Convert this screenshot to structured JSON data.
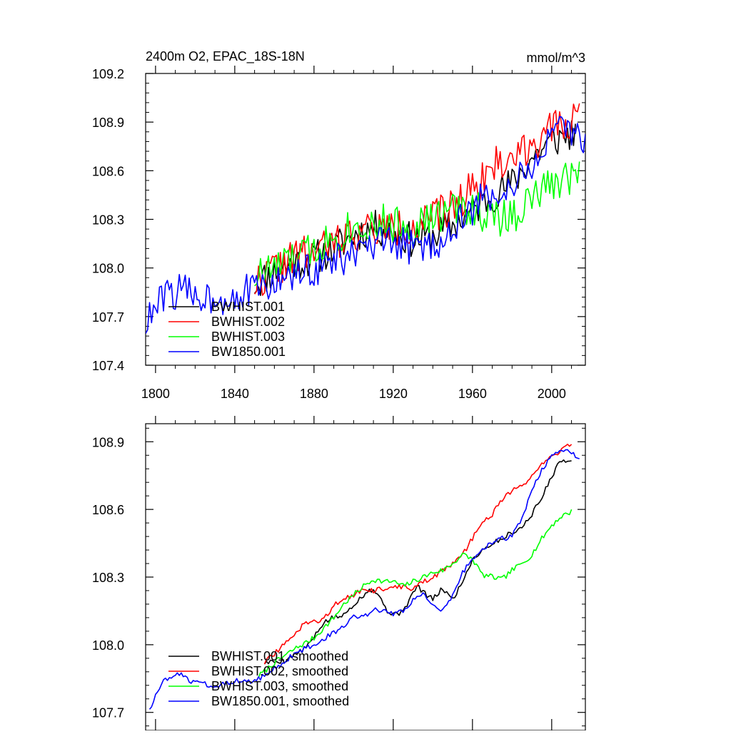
{
  "chart_data": [
    {
      "type": "line",
      "title": "2400m O2, EPAC_18S-18N",
      "units": "mmol/m^3",
      "xlim": [
        1795,
        2017
      ],
      "ylim": [
        107.4,
        109.2
      ],
      "x_ticks": [
        1800,
        1840,
        1880,
        1920,
        1960,
        2000
      ],
      "x_tick_labels": [
        "1800",
        "1840",
        "1880",
        "1920",
        "1960",
        "2000"
      ],
      "y_ticks": [
        107.4,
        107.7,
        108.0,
        108.3,
        108.6,
        108.9,
        109.2
      ],
      "y_tick_labels": [
        "107.4",
        "107.7",
        "108.0",
        "108.3",
        "108.6",
        "108.9",
        "109.2"
      ],
      "legend": "bottom-left",
      "series": [
        {
          "name": "BWHIST.001",
          "color": "#000000",
          "start": 1850,
          "end": 2012,
          "knots": [
            [
              1850,
              107.9
            ],
            [
              1860,
              107.98
            ],
            [
              1870,
              108.03
            ],
            [
              1880,
              108.06
            ],
            [
              1890,
              108.12
            ],
            [
              1900,
              108.2
            ],
            [
              1910,
              108.25
            ],
            [
              1920,
              108.22
            ],
            [
              1930,
              108.17
            ],
            [
              1940,
              108.2
            ],
            [
              1950,
              108.26
            ],
            [
              1960,
              108.35
            ],
            [
              1970,
              108.45
            ],
            [
              1980,
              108.52
            ],
            [
              1990,
              108.68
            ],
            [
              2000,
              108.78
            ],
            [
              2012,
              108.84
            ]
          ],
          "noise": 0.11,
          "seed": 11
        },
        {
          "name": "BWHIST.002",
          "color": "#ff0000",
          "start": 1850,
          "end": 2014,
          "knots": [
            [
              1850,
              107.9
            ],
            [
              1860,
              108.0
            ],
            [
              1870,
              108.06
            ],
            [
              1880,
              108.1
            ],
            [
              1890,
              108.15
            ],
            [
              1900,
              108.22
            ],
            [
              1910,
              108.24
            ],
            [
              1920,
              108.24
            ],
            [
              1930,
              108.26
            ],
            [
              1940,
              108.3
            ],
            [
              1950,
              108.38
            ],
            [
              1960,
              108.5
            ],
            [
              1970,
              108.62
            ],
            [
              1980,
              108.68
            ],
            [
              1990,
              108.78
            ],
            [
              2000,
              108.84
            ],
            [
              2014,
              108.95
            ]
          ],
          "noise": 0.12,
          "seed": 22
        },
        {
          "name": "BWHIST.003",
          "color": "#00ff00",
          "start": 1850,
          "end": 2014,
          "knots": [
            [
              1850,
              107.95
            ],
            [
              1860,
              108.0
            ],
            [
              1870,
              108.05
            ],
            [
              1880,
              108.12
            ],
            [
              1890,
              108.2
            ],
            [
              1900,
              108.26
            ],
            [
              1910,
              108.28
            ],
            [
              1920,
              108.27
            ],
            [
              1930,
              108.26
            ],
            [
              1940,
              108.3
            ],
            [
              1950,
              108.36
            ],
            [
              1960,
              108.38
            ],
            [
              1970,
              108.3
            ],
            [
              1980,
              108.32
            ],
            [
              1990,
              108.42
            ],
            [
              2000,
              108.52
            ],
            [
              2014,
              108.6
            ]
          ],
          "noise": 0.12,
          "seed": 33
        },
        {
          "name": "BW1850.001",
          "color": "#0000ff",
          "start": 1795,
          "end": 2017,
          "knots": [
            [
              1795,
              107.65
            ],
            [
              1805,
              107.84
            ],
            [
              1815,
              107.86
            ],
            [
              1825,
              107.82
            ],
            [
              1835,
              107.82
            ],
            [
              1845,
              107.85
            ],
            [
              1855,
              107.88
            ],
            [
              1865,
              107.93
            ],
            [
              1875,
              107.97
            ],
            [
              1885,
              108.02
            ],
            [
              1895,
              108.06
            ],
            [
              1905,
              108.1
            ],
            [
              1915,
              108.15
            ],
            [
              1925,
              108.14
            ],
            [
              1935,
              108.12
            ],
            [
              1945,
              108.18
            ],
            [
              1955,
              108.3
            ],
            [
              1965,
              108.42
            ],
            [
              1975,
              108.48
            ],
            [
              1985,
              108.55
            ],
            [
              1995,
              108.72
            ],
            [
              2005,
              108.85
            ],
            [
              2017,
              108.8
            ]
          ],
          "noise": 0.11,
          "seed": 44
        }
      ]
    },
    {
      "type": "line",
      "title": "",
      "units": "",
      "xlim": [
        1795,
        2017
      ],
      "ylim": [
        107.62,
        108.98
      ],
      "x_ticks": [
        1800,
        1840,
        1880,
        1920,
        1960,
        2000
      ],
      "x_tick_labels": [
        "",
        "",
        "",
        "",
        "",
        ""
      ],
      "y_ticks": [
        107.7,
        108.0,
        108.3,
        108.6,
        108.9
      ],
      "y_tick_labels": [
        "107.7",
        "108.0",
        "108.3",
        "108.6",
        "108.9"
      ],
      "legend": "bottom-left",
      "series": [
        {
          "name": "BWHIST.001, smoothed",
          "color": "#000000",
          "start": 1855,
          "end": 2010,
          "knots": [
            [
              1855,
              107.92
            ],
            [
              1865,
              107.93
            ],
            [
              1875,
              107.98
            ],
            [
              1880,
              108.03
            ],
            [
              1885,
              108.1
            ],
            [
              1890,
              108.12
            ],
            [
              1895,
              108.13
            ],
            [
              1900,
              108.18
            ],
            [
              1905,
              108.22
            ],
            [
              1908,
              108.25
            ],
            [
              1912,
              108.23
            ],
            [
              1917,
              108.15
            ],
            [
              1922,
              108.13
            ],
            [
              1927,
              108.18
            ],
            [
              1932,
              108.26
            ],
            [
              1937,
              108.22
            ],
            [
              1940,
              108.2
            ],
            [
              1945,
              108.25
            ],
            [
              1950,
              108.2
            ],
            [
              1955,
              108.28
            ],
            [
              1960,
              108.38
            ],
            [
              1965,
              108.42
            ],
            [
              1970,
              108.45
            ],
            [
              1975,
              108.47
            ],
            [
              1980,
              108.5
            ],
            [
              1985,
              108.52
            ],
            [
              1990,
              108.58
            ],
            [
              1995,
              108.65
            ],
            [
              2000,
              108.75
            ],
            [
              2005,
              108.82
            ],
            [
              2010,
              108.82
            ]
          ],
          "noise": 0.012,
          "seed": 5
        },
        {
          "name": "BWHIST.002, smoothed",
          "color": "#ff0000",
          "start": 1855,
          "end": 2010,
          "knots": [
            [
              1855,
              107.92
            ],
            [
              1865,
              108.0
            ],
            [
              1875,
              108.09
            ],
            [
              1885,
              108.11
            ],
            [
              1890,
              108.18
            ],
            [
              1900,
              108.22
            ],
            [
              1905,
              108.25
            ],
            [
              1910,
              108.24
            ],
            [
              1920,
              108.26
            ],
            [
              1930,
              108.25
            ],
            [
              1940,
              108.3
            ],
            [
              1950,
              108.36
            ],
            [
              1955,
              108.4
            ],
            [
              1960,
              108.47
            ],
            [
              1965,
              108.55
            ],
            [
              1970,
              108.58
            ],
            [
              1975,
              108.64
            ],
            [
              1980,
              108.68
            ],
            [
              1985,
              108.7
            ],
            [
              1990,
              108.75
            ],
            [
              1995,
              108.8
            ],
            [
              2000,
              108.83
            ],
            [
              2005,
              108.86
            ],
            [
              2010,
              108.9
            ]
          ],
          "noise": 0.012,
          "seed": 6
        },
        {
          "name": "BWHIST.003, smoothed",
          "color": "#00ff00",
          "start": 1852,
          "end": 2010,
          "knots": [
            [
              1852,
              107.86
            ],
            [
              1860,
              107.92
            ],
            [
              1870,
              107.98
            ],
            [
              1880,
              108.03
            ],
            [
              1890,
              108.12
            ],
            [
              1895,
              108.18
            ],
            [
              1900,
              108.22
            ],
            [
              1905,
              108.26
            ],
            [
              1910,
              108.29
            ],
            [
              1915,
              108.28
            ],
            [
              1920,
              108.28
            ],
            [
              1925,
              108.26
            ],
            [
              1930,
              108.28
            ],
            [
              1935,
              108.3
            ],
            [
              1940,
              108.32
            ],
            [
              1945,
              108.33
            ],
            [
              1950,
              108.36
            ],
            [
              1955,
              108.4
            ],
            [
              1960,
              108.38
            ],
            [
              1965,
              108.31
            ],
            [
              1970,
              108.3
            ],
            [
              1975,
              108.29
            ],
            [
              1980,
              108.33
            ],
            [
              1985,
              108.36
            ],
            [
              1990,
              108.4
            ],
            [
              1995,
              108.47
            ],
            [
              2000,
              108.53
            ],
            [
              2005,
              108.57
            ],
            [
              2010,
              108.59
            ]
          ],
          "noise": 0.012,
          "seed": 7
        },
        {
          "name": "BW1850.001, smoothed",
          "color": "#0000ff",
          "start": 1797,
          "end": 2014,
          "knots": [
            [
              1797,
              107.72
            ],
            [
              1805,
              107.85
            ],
            [
              1812,
              107.87
            ],
            [
              1820,
              107.83
            ],
            [
              1830,
              107.82
            ],
            [
              1840,
              107.84
            ],
            [
              1850,
              107.84
            ],
            [
              1855,
              107.86
            ],
            [
              1860,
              107.9
            ],
            [
              1865,
              107.92
            ],
            [
              1870,
              107.96
            ],
            [
              1875,
              107.98
            ],
            [
              1880,
              108.0
            ],
            [
              1885,
              108.03
            ],
            [
              1890,
              108.05
            ],
            [
              1895,
              108.08
            ],
            [
              1900,
              108.12
            ],
            [
              1905,
              108.12
            ],
            [
              1910,
              108.15
            ],
            [
              1915,
              108.16
            ],
            [
              1920,
              108.14
            ],
            [
              1925,
              108.15
            ],
            [
              1930,
              108.2
            ],
            [
              1935,
              108.22
            ],
            [
              1940,
              108.18
            ],
            [
              1945,
              108.15
            ],
            [
              1950,
              108.22
            ],
            [
              1955,
              108.32
            ],
            [
              1960,
              108.38
            ],
            [
              1965,
              108.43
            ],
            [
              1970,
              108.45
            ],
            [
              1975,
              108.47
            ],
            [
              1980,
              108.48
            ],
            [
              1985,
              108.56
            ],
            [
              1990,
              108.68
            ],
            [
              1995,
              108.78
            ],
            [
              2000,
              108.83
            ],
            [
              2005,
              108.86
            ],
            [
              2010,
              108.85
            ],
            [
              2014,
              108.82
            ]
          ],
          "noise": 0.012,
          "seed": 8
        }
      ]
    }
  ]
}
